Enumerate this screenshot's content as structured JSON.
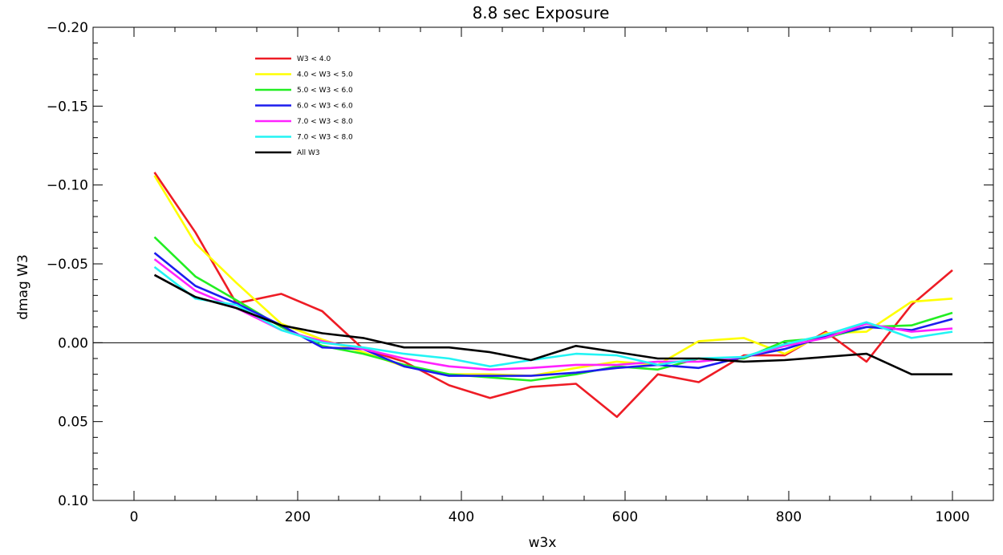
{
  "chart_data": {
    "type": "line",
    "title": "8.8 sec Exposure",
    "xlabel": "w3x",
    "ylabel": "dmag W3",
    "xlim": [
      -50,
      1050
    ],
    "ylim": [
      0.1,
      -0.2
    ],
    "x_ticks": [
      0,
      200,
      400,
      600,
      800,
      1000
    ],
    "x_tick_labels": [
      "0",
      "200",
      "400",
      "600",
      "800",
      "1000"
    ],
    "y_ticks": [
      -0.2,
      -0.15,
      -0.1,
      -0.05,
      0.0,
      0.05,
      0.1
    ],
    "y_tick_labels": [
      "−0.20",
      "−0.15",
      "−0.10",
      "−0.05",
      "0.00",
      "0.05",
      "0.10"
    ],
    "zero_line": true,
    "grid": false,
    "legend_position": "top-left",
    "x": [
      25,
      75,
      125,
      180,
      230,
      280,
      330,
      385,
      435,
      485,
      540,
      590,
      640,
      690,
      745,
      795,
      845,
      895,
      950,
      1000
    ],
    "series": [
      {
        "name": "W3 < 4.0",
        "color": "#ee1c25",
        "values": [
          -0.108,
          -0.07,
          -0.025,
          -0.031,
          -0.02,
          0.004,
          0.012,
          0.027,
          0.035,
          0.028,
          0.026,
          0.047,
          0.02,
          0.025,
          0.008,
          0.008,
          -0.007,
          0.012,
          -0.024,
          -0.046
        ]
      },
      {
        "name": "4.0 < W3 < 5.0",
        "color": "#ffff00",
        "values": [
          -0.106,
          -0.063,
          -0.038,
          -0.012,
          -0.002,
          0.006,
          0.015,
          0.02,
          0.02,
          0.021,
          0.016,
          0.012,
          0.014,
          -0.001,
          -0.003,
          0.007,
          -0.006,
          -0.007,
          -0.026,
          -0.028
        ]
      },
      {
        "name": "5.0 < W3 < 6.0",
        "color": "#22ee22",
        "values": [
          -0.067,
          -0.042,
          -0.027,
          -0.01,
          0.002,
          0.007,
          0.014,
          0.02,
          0.022,
          0.024,
          0.02,
          0.015,
          0.017,
          0.01,
          0.01,
          -0.001,
          -0.003,
          -0.01,
          -0.011,
          -0.019
        ]
      },
      {
        "name": "6.0 < W3 < 6.0",
        "color": "#1c1cee",
        "values": [
          -0.057,
          -0.036,
          -0.025,
          -0.011,
          0.003,
          0.004,
          0.015,
          0.021,
          0.021,
          0.021,
          0.019,
          0.016,
          0.014,
          0.016,
          0.009,
          0.004,
          -0.004,
          -0.01,
          -0.008,
          -0.015
        ]
      },
      {
        "name": "7.0 < W3 < 8.0",
        "color": "#ff22ff",
        "values": [
          -0.053,
          -0.033,
          -0.022,
          -0.008,
          -0.001,
          0.004,
          0.01,
          0.015,
          0.017,
          0.016,
          0.014,
          0.014,
          0.012,
          0.012,
          0.009,
          0.002,
          -0.003,
          -0.012,
          -0.007,
          -0.009
        ]
      },
      {
        "name": "7.0 < W3 < 8.0",
        "color": "#22f4f4",
        "values": [
          -0.048,
          -0.028,
          -0.024,
          -0.008,
          0.0,
          0.003,
          0.007,
          0.01,
          0.015,
          0.011,
          0.007,
          0.008,
          0.014,
          0.01,
          0.009,
          0.001,
          -0.005,
          -0.013,
          -0.003,
          -0.007
        ]
      },
      {
        "name": "All W3",
        "color": "#000000",
        "values": [
          -0.043,
          -0.029,
          -0.022,
          -0.011,
          -0.006,
          -0.003,
          0.003,
          0.003,
          0.006,
          0.011,
          0.002,
          0.006,
          0.01,
          0.01,
          0.012,
          0.011,
          0.009,
          0.007,
          0.02,
          0.02
        ]
      }
    ]
  }
}
